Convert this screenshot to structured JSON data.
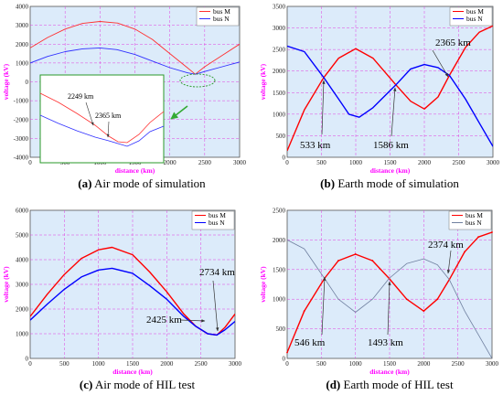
{
  "chart_data": [
    {
      "id": "a",
      "type": "line",
      "caption_label": "(a)",
      "caption_text": " Air mode of simulation",
      "xlabel": "distance (km)",
      "ylabel": "voltage (kV)",
      "xlim": [
        0,
        3000
      ],
      "ylim": [
        -4000,
        4000
      ],
      "xticks": [
        0,
        500,
        1000,
        1500,
        2000,
        2500,
        3000
      ],
      "yticks": [
        -4000,
        -3000,
        -2000,
        -1000,
        0,
        1000,
        2000,
        3000,
        4000
      ],
      "grid": true,
      "legend_position": "top-right",
      "series": [
        {
          "name": "bus M",
          "color": "#ff3030",
          "x": [
            0,
            250,
            500,
            750,
            1000,
            1250,
            1500,
            1750,
            2000,
            2250,
            2365,
            2500,
            2750,
            3000
          ],
          "y": [
            1800,
            2350,
            2800,
            3100,
            3200,
            3120,
            2800,
            2250,
            1500,
            750,
            400,
            800,
            1400,
            2000
          ]
        },
        {
          "name": "bus N",
          "color": "#3030ff",
          "x": [
            0,
            250,
            500,
            750,
            1000,
            1250,
            1500,
            1750,
            2000,
            2250,
            2365,
            2500,
            2750,
            3000
          ],
          "y": [
            1000,
            1350,
            1600,
            1750,
            1800,
            1700,
            1450,
            1100,
            750,
            480,
            400,
            550,
            800,
            1050
          ]
        }
      ],
      "inset": {
        "annotations": [
          {
            "label": "2249 km",
            "x": 2249
          },
          {
            "label": "2365 km",
            "x": 2365
          }
        ]
      }
    },
    {
      "id": "b",
      "type": "line",
      "caption_label": "(b)",
      "caption_text": " Earth mode of simulation",
      "xlabel": "distance (km)",
      "ylabel": "voltage (kV)",
      "xlim": [
        0,
        3000
      ],
      "ylim": [
        0,
        3500
      ],
      "xticks": [
        0,
        500,
        1000,
        1500,
        2000,
        2500,
        3000
      ],
      "yticks": [
        0,
        500,
        1000,
        1500,
        2000,
        2500,
        3000,
        3500
      ],
      "grid": true,
      "legend_position": "top-right",
      "series": [
        {
          "name": "bus M",
          "color": "#ff0000",
          "x": [
            0,
            250,
            533,
            750,
            1000,
            1250,
            1586,
            1800,
            2000,
            2200,
            2365,
            2600,
            2800,
            3000
          ],
          "y": [
            150,
            1100,
            1850,
            2300,
            2520,
            2300,
            1680,
            1300,
            1120,
            1400,
            1900,
            2550,
            2900,
            3050
          ]
        },
        {
          "name": "bus N",
          "color": "#0000ff",
          "x": [
            0,
            250,
            533,
            750,
            900,
            1050,
            1250,
            1586,
            1800,
            2000,
            2200,
            2365,
            2600,
            2800,
            3000
          ],
          "y": [
            2580,
            2450,
            1850,
            1350,
            1000,
            930,
            1150,
            1680,
            2050,
            2150,
            2080,
            1900,
            1350,
            800,
            250
          ]
        }
      ],
      "annotations": [
        {
          "label": "533 km",
          "x": 533
        },
        {
          "label": "1586 km",
          "x": 1586
        },
        {
          "label": "2365 km",
          "x": 2365
        }
      ]
    },
    {
      "id": "c",
      "type": "line",
      "caption_label": "(c)",
      "caption_text": " Air mode of HIL test",
      "xlabel": "distance (km)",
      "ylabel": "voltage (kV)",
      "xlim": [
        0,
        3000
      ],
      "ylim": [
        0,
        6000
      ],
      "xticks": [
        0,
        500,
        1000,
        1500,
        2000,
        2500,
        3000
      ],
      "yticks": [
        0,
        1000,
        2000,
        3000,
        4000,
        5000,
        6000
      ],
      "grid": true,
      "legend_position": "top-right",
      "series": [
        {
          "name": "bus M",
          "color": "#ff0000",
          "x": [
            0,
            250,
            500,
            750,
            1000,
            1200,
            1500,
            1750,
            2000,
            2250,
            2425,
            2600,
            2734,
            2850,
            3000
          ],
          "y": [
            1700,
            2600,
            3400,
            4050,
            4400,
            4500,
            4200,
            3500,
            2700,
            1800,
            1300,
            1000,
            950,
            1250,
            1800
          ]
        },
        {
          "name": "bus N",
          "color": "#0000ff",
          "x": [
            0,
            250,
            500,
            750,
            1000,
            1200,
            1500,
            1750,
            2000,
            2250,
            2425,
            2600,
            2734,
            2850,
            3000
          ],
          "y": [
            1550,
            2200,
            2800,
            3300,
            3580,
            3650,
            3450,
            2950,
            2400,
            1700,
            1300,
            1000,
            950,
            1150,
            1500
          ]
        }
      ],
      "annotations": [
        {
          "label": "2425 km",
          "x": 2425
        },
        {
          "label": "2734 km",
          "x": 2734
        }
      ]
    },
    {
      "id": "d",
      "type": "line",
      "caption_label": "(d)",
      "caption_text": " Earth mode of HIL test",
      "xlabel": "distance (km)",
      "ylabel": "voltage (kV)",
      "xlim": [
        0,
        3000
      ],
      "ylim": [
        0,
        2500
      ],
      "xticks": [
        0,
        500,
        1000,
        1500,
        2000,
        2500,
        3000
      ],
      "yticks": [
        0,
        500,
        1000,
        1500,
        2000,
        2500
      ],
      "grid": true,
      "legend_position": "top-right",
      "series": [
        {
          "name": "bus M",
          "color": "#ff0000",
          "x": [
            0,
            250,
            546,
            750,
            1000,
            1250,
            1493,
            1750,
            2000,
            2200,
            2374,
            2600,
            2800,
            3000
          ],
          "y": [
            100,
            800,
            1350,
            1650,
            1760,
            1650,
            1350,
            1000,
            800,
            1000,
            1330,
            1800,
            2050,
            2130
          ]
        },
        {
          "name": "bus N",
          "color": "#7080a0",
          "x": [
            0,
            250,
            546,
            750,
            1000,
            1250,
            1493,
            1750,
            2000,
            2200,
            2374,
            2600,
            2800,
            3000
          ],
          "y": [
            2000,
            1850,
            1350,
            1000,
            780,
            1000,
            1350,
            1600,
            1680,
            1580,
            1330,
            800,
            400,
            0
          ]
        }
      ],
      "annotations": [
        {
          "label": "546 km",
          "x": 546
        },
        {
          "label": "1493 km",
          "x": 1493
        },
        {
          "label": "2374 km",
          "x": 2374
        }
      ]
    }
  ]
}
